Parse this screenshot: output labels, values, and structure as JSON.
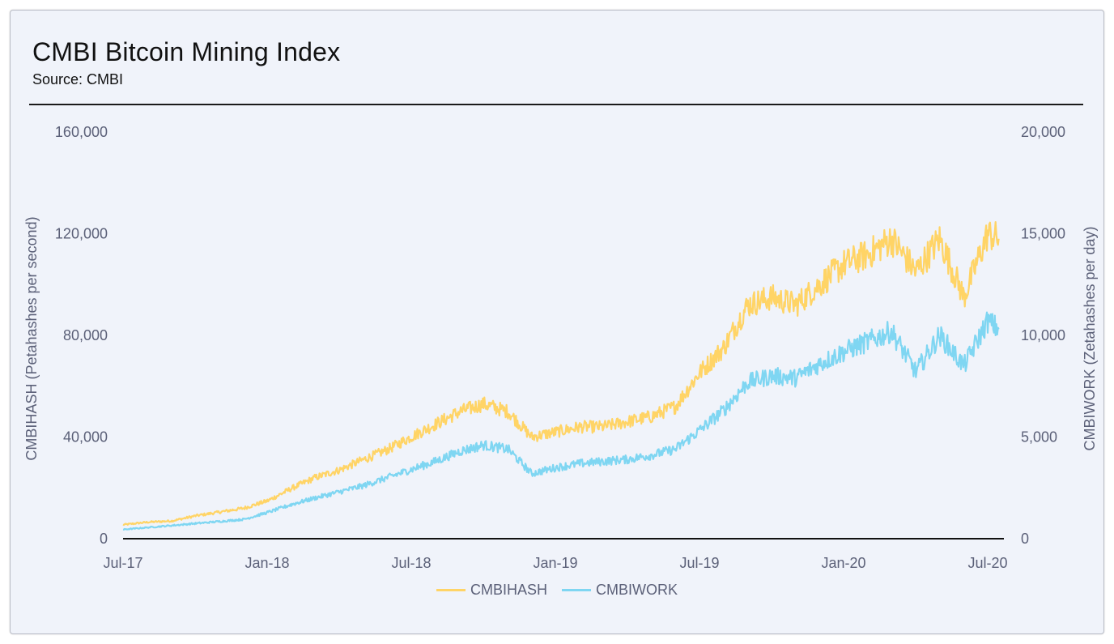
{
  "title": "CMBI Bitcoin Mining Index",
  "subtitle": "Source: CMBI",
  "chart_data": {
    "type": "line",
    "x_ticks": [
      "Jul-17",
      "Jan-18",
      "Jul-18",
      "Jan-19",
      "Jul-19",
      "Jan-20",
      "Jul-20"
    ],
    "x_range": [
      "2017-07-01",
      "2020-07-01"
    ],
    "left_axis": {
      "label": "CMBIHASH (Petahashes per second)",
      "ticks": [
        "0",
        "40,000",
        "80,000",
        "120,000",
        "160,000"
      ],
      "range": [
        0,
        160000
      ]
    },
    "right_axis": {
      "label": "CMBIWORK (Zetahashes per day)",
      "ticks": [
        "0",
        "5,000",
        "10,000",
        "15,000",
        "20,000"
      ],
      "range": [
        0,
        20000
      ]
    },
    "legend_position": "bottom",
    "grid": false,
    "series": [
      {
        "name": "CMBIHASH",
        "axis": "left",
        "color": "#ffd466",
        "points": [
          [
            "2017-07-01",
            5500
          ],
          [
            "2017-08-01",
            6500
          ],
          [
            "2017-09-01",
            7000
          ],
          [
            "2017-10-01",
            9000
          ],
          [
            "2017-11-01",
            10500
          ],
          [
            "2017-12-01",
            12000
          ],
          [
            "2018-01-01",
            15000
          ],
          [
            "2018-02-01",
            20000
          ],
          [
            "2018-03-01",
            24000
          ],
          [
            "2018-04-01",
            27000
          ],
          [
            "2018-05-01",
            31000
          ],
          [
            "2018-06-01",
            35000
          ],
          [
            "2018-07-01",
            40000
          ],
          [
            "2018-08-01",
            45000
          ],
          [
            "2018-09-01",
            50000
          ],
          [
            "2018-10-01",
            53000
          ],
          [
            "2018-11-01",
            50000
          ],
          [
            "2018-12-01",
            40000
          ],
          [
            "2019-01-01",
            42000
          ],
          [
            "2019-02-01",
            44000
          ],
          [
            "2019-03-01",
            44000
          ],
          [
            "2019-04-01",
            46000
          ],
          [
            "2019-05-01",
            48000
          ],
          [
            "2019-06-01",
            52000
          ],
          [
            "2019-07-01",
            65000
          ],
          [
            "2019-08-01",
            75000
          ],
          [
            "2019-09-01",
            92000
          ],
          [
            "2019-10-01",
            95000
          ],
          [
            "2019-11-01",
            92000
          ],
          [
            "2019-12-01",
            100000
          ],
          [
            "2020-01-01",
            108000
          ],
          [
            "2020-02-01",
            112000
          ],
          [
            "2020-03-01",
            118000
          ],
          [
            "2020-04-01",
            105000
          ],
          [
            "2020-05-01",
            118000
          ],
          [
            "2020-06-01",
            95000
          ],
          [
            "2020-07-01",
            120000
          ],
          [
            "2020-07-15",
            118000
          ]
        ]
      },
      {
        "name": "CMBIWORK",
        "axis": "right",
        "color": "#7fd6f2",
        "points": [
          [
            "2017-07-01",
            450
          ],
          [
            "2017-08-01",
            550
          ],
          [
            "2017-09-01",
            650
          ],
          [
            "2017-10-01",
            750
          ],
          [
            "2017-11-01",
            850
          ],
          [
            "2017-12-01",
            950
          ],
          [
            "2018-01-01",
            1300
          ],
          [
            "2018-02-01",
            1700
          ],
          [
            "2018-03-01",
            2000
          ],
          [
            "2018-04-01",
            2300
          ],
          [
            "2018-05-01",
            2600
          ],
          [
            "2018-06-01",
            3000
          ],
          [
            "2018-07-01",
            3400
          ],
          [
            "2018-08-01",
            3800
          ],
          [
            "2018-09-01",
            4300
          ],
          [
            "2018-10-01",
            4600
          ],
          [
            "2018-11-01",
            4400
          ],
          [
            "2018-12-01",
            3200
          ],
          [
            "2019-01-01",
            3500
          ],
          [
            "2019-02-01",
            3700
          ],
          [
            "2019-03-01",
            3800
          ],
          [
            "2019-04-01",
            3900
          ],
          [
            "2019-05-01",
            4100
          ],
          [
            "2019-06-01",
            4400
          ],
          [
            "2019-07-01",
            5300
          ],
          [
            "2019-08-01",
            6300
          ],
          [
            "2019-09-01",
            7700
          ],
          [
            "2019-10-01",
            8000
          ],
          [
            "2019-11-01",
            7900
          ],
          [
            "2019-12-01",
            8600
          ],
          [
            "2020-01-01",
            9200
          ],
          [
            "2020-02-01",
            9700
          ],
          [
            "2020-03-01",
            10200
          ],
          [
            "2020-04-01",
            8200
          ],
          [
            "2020-05-01",
            10000
          ],
          [
            "2020-06-01",
            8500
          ],
          [
            "2020-07-01",
            10700
          ],
          [
            "2020-07-15",
            10300
          ]
        ]
      }
    ]
  }
}
